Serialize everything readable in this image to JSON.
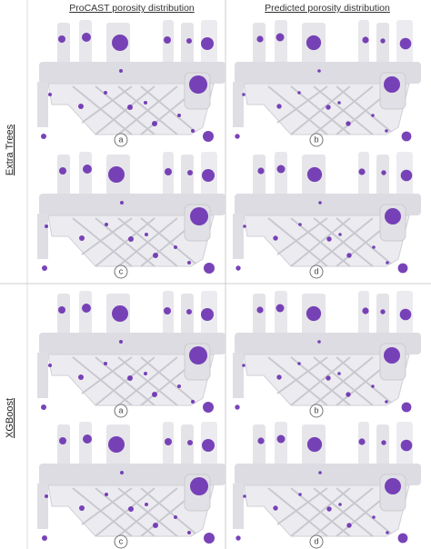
{
  "header": {
    "columns": [
      "ProCAST porosity distribution",
      "Predicted porosity distribution"
    ]
  },
  "rows": [
    {
      "label": "Extra Trees",
      "panels": [
        "a",
        "b",
        "c",
        "d"
      ]
    },
    {
      "label": "XGBoost",
      "panels": [
        "a",
        "b",
        "c",
        "d"
      ]
    }
  ]
}
